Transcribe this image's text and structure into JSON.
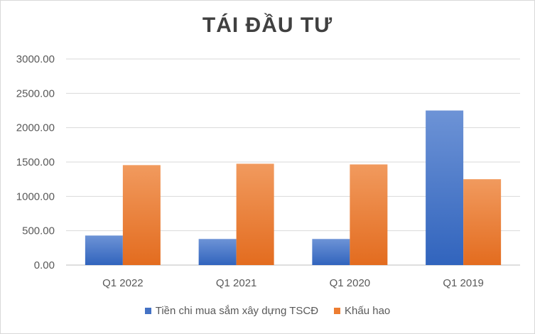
{
  "chart_data": {
    "type": "bar",
    "title": "TÁI ĐẦU TƯ",
    "categories": [
      "Q1 2022",
      "Q1 2021",
      "Q1 2020",
      "Q1 2019"
    ],
    "series": [
      {
        "name": "Tiền chi mua sắm xây dựng TSCĐ",
        "color": "#4472c4",
        "values": [
          430,
          380,
          380,
          2250
        ]
      },
      {
        "name": "Khấu hao",
        "color": "#ed7d31",
        "values": [
          1455,
          1475,
          1465,
          1250
        ]
      }
    ],
    "ylim": [
      0,
      3000
    ],
    "yticks": [
      "0.00",
      "500.00",
      "1000.00",
      "1500.00",
      "2000.00",
      "2500.00",
      "3000.00"
    ],
    "grid": true,
    "legend": "bottom"
  }
}
